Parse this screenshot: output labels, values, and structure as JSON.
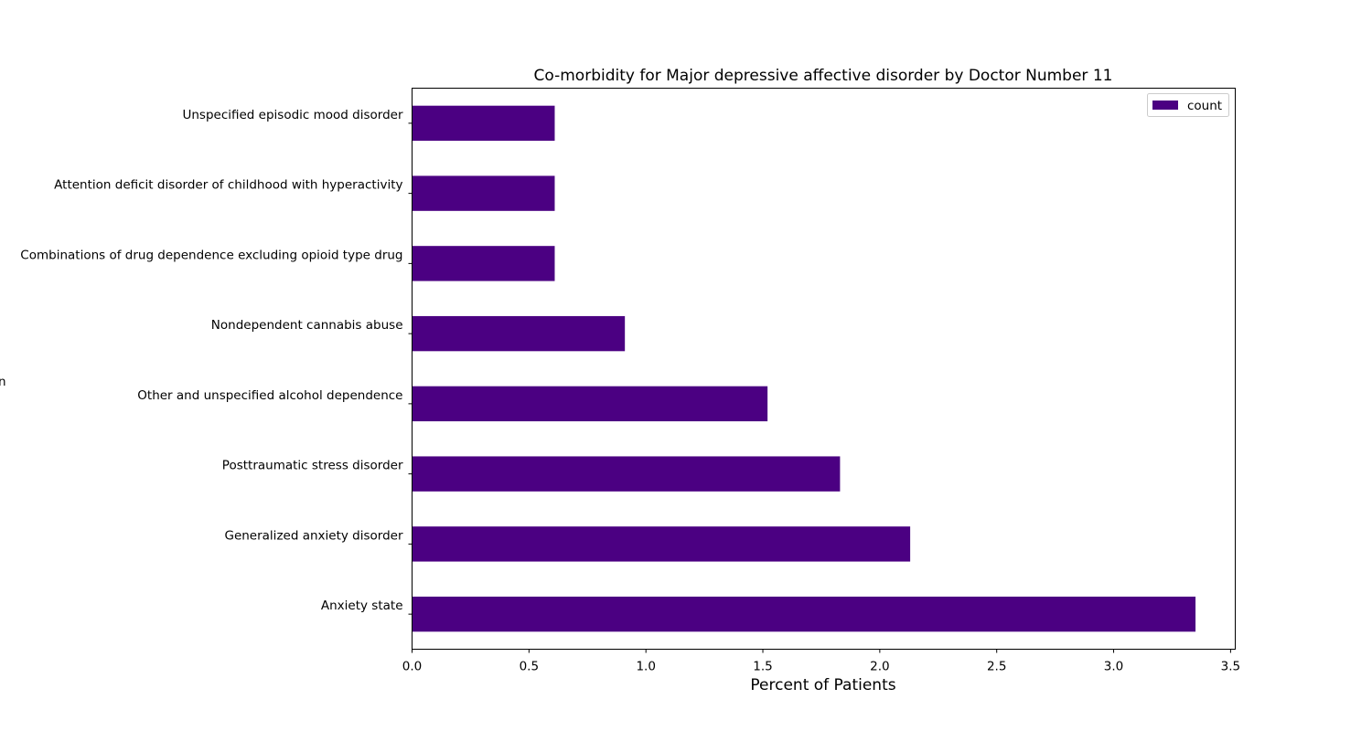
{
  "chart_data": {
    "type": "bar",
    "orientation": "horizontal",
    "title": "Co-morbidity for Major depressive affective disorder by Doctor Number 11",
    "xlabel": "Percent of Patients",
    "ylabel": "n",
    "categories": [
      "Anxiety state",
      "Generalized anxiety disorder",
      "Posttraumatic stress disorder",
      "Other and unspecified alcohol dependence",
      "Nondependent cannabis abuse",
      "Combinations of drug dependence excluding opioid type drug",
      "Attention deficit disorder of childhood with hyperactivity",
      "Unspecified episodic mood disorder"
    ],
    "series": [
      {
        "name": "count",
        "color": "#4b0082",
        "values": [
          3.35,
          2.13,
          1.83,
          1.52,
          0.91,
          0.61,
          0.61,
          0.61
        ]
      }
    ],
    "xlim": [
      0,
      3.52
    ],
    "xticks": [
      0.0,
      0.5,
      1.0,
      1.5,
      2.0,
      2.5,
      3.0,
      3.5
    ],
    "xtick_labels": [
      "0.0",
      "0.5",
      "1.0",
      "1.5",
      "2.0",
      "2.5",
      "3.0",
      "3.5"
    ],
    "legend": {
      "position": "top-right",
      "entries": [
        "count"
      ]
    },
    "grid": false
  }
}
